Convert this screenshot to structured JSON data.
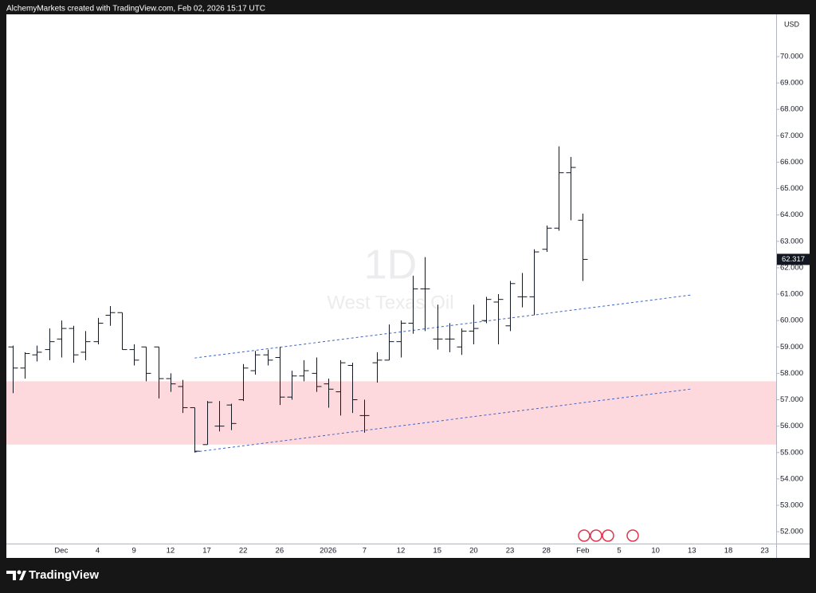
{
  "header": {
    "text": "AlchemyMarkets created with TradingView.com, Feb 02, 2026 15:17 UTC"
  },
  "footer": {
    "brand": "TradingView"
  },
  "chart_data": {
    "type": "ohlc",
    "watermark": {
      "interval": "1D",
      "symbol": "West Texas Oil"
    },
    "currency": "USD",
    "categories": [
      null,
      null,
      null,
      null,
      "Dec",
      null,
      null,
      "4",
      null,
      null,
      "9",
      null,
      null,
      "12",
      null,
      null,
      "17",
      null,
      null,
      "22",
      null,
      null,
      "26",
      null,
      null,
      null,
      "2026",
      null,
      null,
      "7",
      null,
      null,
      "12",
      null,
      null,
      "15",
      null,
      null,
      "20",
      null,
      null,
      "23",
      null,
      null,
      "28",
      null,
      null,
      "Feb",
      null,
      null,
      "5",
      null,
      null,
      "10",
      null,
      null,
      "13",
      null,
      null,
      "18",
      null,
      null,
      "23"
    ],
    "series": [
      {
        "color": "#131722",
        "open": [
          59.0,
          58.2,
          58.7,
          58.9,
          59.3,
          59.7,
          58.8,
          59.2,
          60.2,
          60.3,
          58.9,
          59.0,
          59.0,
          57.8,
          57.5,
          56.7,
          55.3,
          56.0,
          56.8,
          57.0,
          58.1,
          58.7,
          58.6,
          57.1,
          57.9,
          58.0,
          57.6,
          57.3,
          58.3,
          56.4,
          58.4,
          58.5,
          59.2,
          59.9,
          61.2,
          59.3,
          59.3,
          59.0,
          59.6,
          60.0,
          60.7,
          59.8,
          60.9,
          60.9,
          62.7,
          63.5,
          65.6,
          63.8,
          null,
          null,
          null,
          null,
          null,
          null,
          null,
          null,
          null,
          null,
          null,
          null,
          null,
          null,
          null
        ],
        "high": [
          59.05,
          58.8,
          59.05,
          59.7,
          60.0,
          59.8,
          59.6,
          60.1,
          60.55,
          60.3,
          59.1,
          59.0,
          59.0,
          58.0,
          57.75,
          56.7,
          56.95,
          56.95,
          56.85,
          58.35,
          58.85,
          58.9,
          59.0,
          58.1,
          58.5,
          58.6,
          57.8,
          58.5,
          58.4,
          57.0,
          58.8,
          59.85,
          60.0,
          61.7,
          62.4,
          60.6,
          59.9,
          59.7,
          60.6,
          60.9,
          61.0,
          61.5,
          61.8,
          62.7,
          63.6,
          66.6,
          66.2,
          64.05,
          null,
          null,
          null,
          null,
          null,
          null,
          null,
          null,
          null,
          null,
          null,
          null,
          null,
          null,
          null
        ],
        "low": [
          57.25,
          57.8,
          58.45,
          58.5,
          58.6,
          58.4,
          58.5,
          59.1,
          59.8,
          58.9,
          58.3,
          57.7,
          57.05,
          57.3,
          56.5,
          55.0,
          55.3,
          55.8,
          55.85,
          56.95,
          57.95,
          58.3,
          56.8,
          57.0,
          57.7,
          57.3,
          56.7,
          56.4,
          56.5,
          55.75,
          57.65,
          58.5,
          58.6,
          59.5,
          59.6,
          58.9,
          58.8,
          58.7,
          59.1,
          59.9,
          59.1,
          59.6,
          60.5,
          60.2,
          62.6,
          63.4,
          63.8,
          61.5,
          null,
          null,
          null,
          null,
          null,
          null,
          null,
          null,
          null,
          null,
          null,
          null,
          null,
          null,
          null
        ],
        "close": [
          58.2,
          58.75,
          58.8,
          59.2,
          59.7,
          58.7,
          59.2,
          59.9,
          60.3,
          58.9,
          58.5,
          58.0,
          57.8,
          57.6,
          56.7,
          55.05,
          56.9,
          56.0,
          56.1,
          58.2,
          58.7,
          58.5,
          57.1,
          57.9,
          58.1,
          57.5,
          57.4,
          58.4,
          57.0,
          56.4,
          58.5,
          59.2,
          59.9,
          61.2,
          61.2,
          59.3,
          59.3,
          59.6,
          59.7,
          60.8,
          60.8,
          61.4,
          60.9,
          62.6,
          63.5,
          65.6,
          65.8,
          62.317,
          null,
          null,
          null,
          null,
          null,
          null,
          null,
          null,
          null,
          null,
          null,
          null,
          null,
          null,
          null
        ]
      }
    ],
    "ylim": [
      51.55,
      71.6
    ],
    "yticks": [
      {
        "value": 52,
        "label": "52.000"
      },
      {
        "value": 53,
        "label": "53.000"
      },
      {
        "value": 54,
        "label": "54.000"
      },
      {
        "value": 55,
        "label": "55.000"
      },
      {
        "value": 56,
        "label": "56.000"
      },
      {
        "value": 57,
        "label": "57.000"
      },
      {
        "value": 58,
        "label": "58.000"
      },
      {
        "value": 59,
        "label": "59.000"
      },
      {
        "value": 60,
        "label": "60.000"
      },
      {
        "value": 61,
        "label": "61.000"
      },
      {
        "value": 62,
        "label": "62.000"
      },
      {
        "value": 63,
        "label": "63.000"
      },
      {
        "value": 64,
        "label": "64.000"
      },
      {
        "value": 65,
        "label": "65.000"
      },
      {
        "value": 66,
        "label": "66.000"
      },
      {
        "value": 67,
        "label": "67.000"
      },
      {
        "value": 68,
        "label": "68.000"
      },
      {
        "value": 69,
        "label": "69.000"
      },
      {
        "value": 70,
        "label": "70.000"
      }
    ],
    "zone": {
      "color": "#fdd9de",
      "ylim": [
        55.3,
        57.7
      ]
    },
    "trendlines": [
      {
        "color": "#3d63c9",
        "start": [
          15,
          58.58
        ],
        "end": [
          56,
          60.97
        ]
      },
      {
        "color": "#3d63c9",
        "start": [
          15,
          55.02
        ],
        "end": [
          56,
          57.41
        ]
      }
    ]
  }
}
